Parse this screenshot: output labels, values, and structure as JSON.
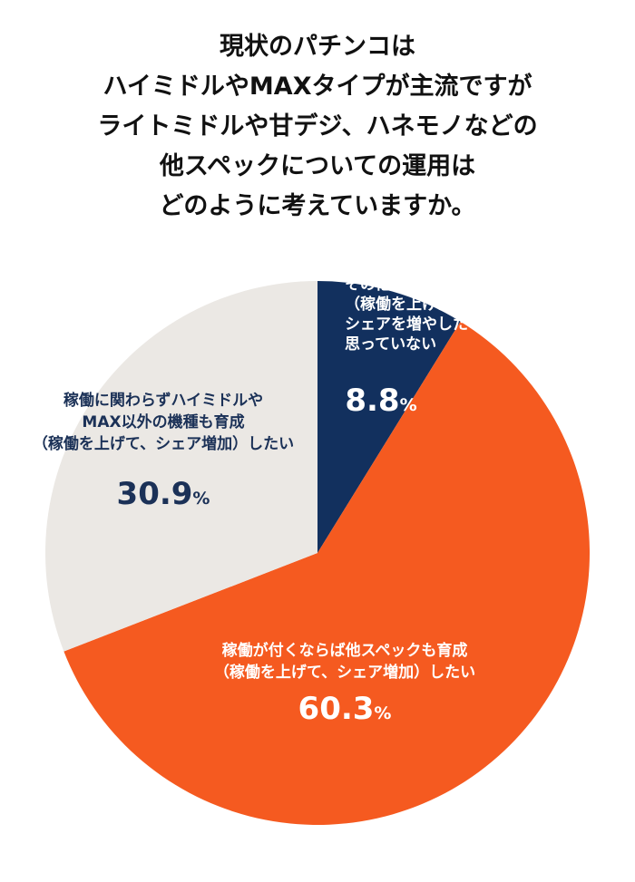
{
  "title_lines": [
    "現状のパチンコは",
    "ハイミドルやMAXタイプが主流ですが",
    "ライトミドルや甘デジ、ハネモノなどの",
    "他スペックについての運用は",
    "どのように考えていますか。"
  ],
  "chart_data": {
    "type": "pie",
    "start": "12 o'clock",
    "direction": "clockwise",
    "slices": [
      {
        "label_lines": [
          "その他の機種を育成したい",
          "（稼働を上げたい、",
          "シェアを増やしたい）と",
          "思っていない"
        ],
        "value": 8.8,
        "value_text": "8.8",
        "unit": "%",
        "color": "#12305e",
        "label_color": "#ffffff"
      },
      {
        "label_lines": [
          "稼働が付くならば他スペックも育成",
          "（稼働を上げて、シェア増加）したい"
        ],
        "value": 60.3,
        "value_text": "60.3",
        "unit": "%",
        "color": "#f55a20",
        "label_color": "#ffffff"
      },
      {
        "label_lines": [
          "稼働に関わらずハイミドルや",
          "MAX以外の機種も育成",
          "（稼働を上げて、シェア増加）したい"
        ],
        "value": 30.9,
        "value_text": "30.9",
        "unit": "%",
        "color": "#ebe8e4",
        "label_color": "#1b3157"
      }
    ]
  }
}
